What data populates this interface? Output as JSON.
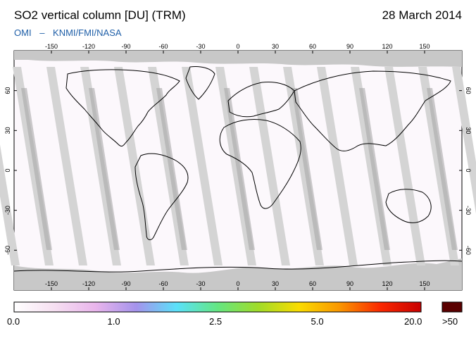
{
  "title": "SO2 vertical column [DU] (TRM)",
  "date": "28 March 2014",
  "subtitle": {
    "instrument": "OMI",
    "separator": "–",
    "agencies": "KNMI/FMI/NASA"
  },
  "map": {
    "projection": "equirectangular",
    "lon_range": [
      -180,
      180
    ],
    "lat_range": [
      -90,
      90
    ],
    "lon_ticks": [
      -150,
      -120,
      -90,
      -60,
      -30,
      0,
      30,
      60,
      90,
      120,
      150
    ],
    "lat_ticks": [
      60,
      30,
      0,
      -30,
      -60
    ],
    "no_data_color": "#c8c8c8",
    "overpass_gap_color": "#d4d4d4",
    "swath_shadow_color": "#a8a8a8"
  },
  "colorbar": {
    "labels": [
      "0.0",
      "1.0",
      "2.5",
      "5.0",
      "20.0"
    ],
    "overflow_label": ">50",
    "overflow_color": "#5a0000",
    "stops": [
      {
        "color": "#ffffff"
      },
      {
        "color": "#f6dff1"
      },
      {
        "color": "#e9b5ec"
      },
      {
        "color": "#a593ec"
      },
      {
        "color": "#5ae1fa"
      },
      {
        "color": "#64e682"
      },
      {
        "color": "#a0dc28"
      },
      {
        "color": "#fadc00"
      },
      {
        "color": "#fa9600"
      },
      {
        "color": "#fa2800"
      },
      {
        "color": "#c80000"
      }
    ]
  }
}
